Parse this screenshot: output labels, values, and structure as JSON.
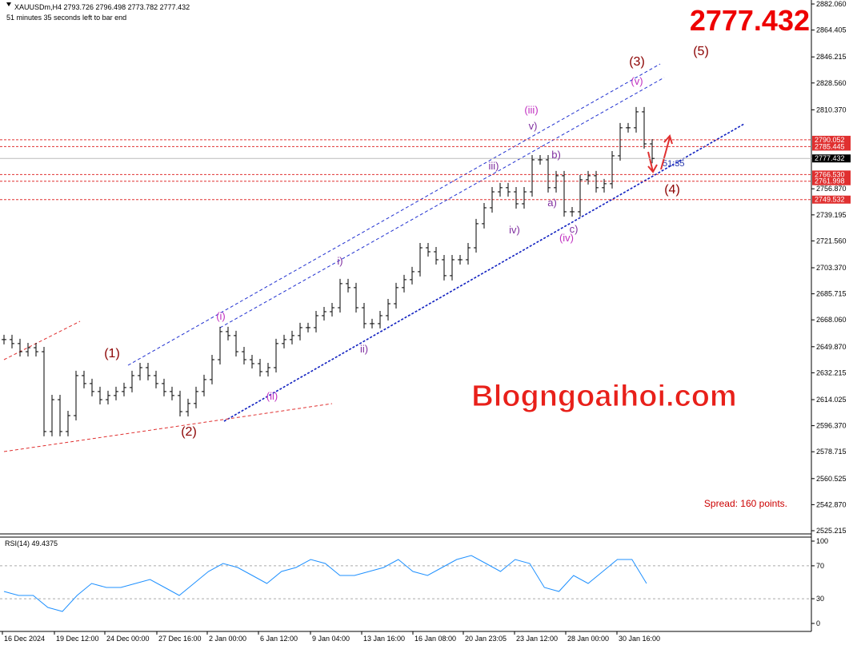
{
  "header": {
    "symbol_line": "XAUUSDm,H4  2793.726 2796.498 2773.782 2777.432",
    "timer_line": "51 minutes 35 seconds left to bar end",
    "big_price": "2777.432"
  },
  "watermark": "Blogngoaihoi.com",
  "spread": "Spread: 160 points.",
  "bar_timer": "51:35",
  "price_axis": {
    "lim": [
      2525.215,
      2882.06
    ],
    "ticks": [
      {
        "value": 2882.06,
        "label": "2882.060"
      },
      {
        "value": 2864.405,
        "label": "2864.405"
      },
      {
        "value": 2846.215,
        "label": "2846.215"
      },
      {
        "value": 2828.56,
        "label": "2828.560"
      },
      {
        "value": 2810.37,
        "label": "2810.370"
      },
      {
        "value": 2756.87,
        "label": "2756.870"
      },
      {
        "value": 2739.195,
        "label": "2739.195"
      },
      {
        "value": 2721.56,
        "label": "2721.560"
      },
      {
        "value": 2703.37,
        "label": "2703.370"
      },
      {
        "value": 2685.715,
        "label": "2685.715"
      },
      {
        "value": 2668.06,
        "label": "2668.060"
      },
      {
        "value": 2649.87,
        "label": "2649.870"
      },
      {
        "value": 2632.215,
        "label": "2632.215"
      },
      {
        "value": 2614.025,
        "label": "2614.025"
      },
      {
        "value": 2596.37,
        "label": "2596.370"
      },
      {
        "value": 2578.715,
        "label": "2578.715"
      },
      {
        "value": 2560.525,
        "label": "2560.525"
      },
      {
        "value": 2542.87,
        "label": "2542.870"
      },
      {
        "value": 2525.215,
        "label": "2525.215"
      }
    ]
  },
  "levels": [
    {
      "value": 2790.052,
      "label": "2790.052"
    },
    {
      "value": 2785.445,
      "label": "2785.445"
    },
    {
      "value": 2766.53,
      "label": "2766.530"
    },
    {
      "value": 2761.998,
      "label": "2761.998"
    },
    {
      "value": 2749.532,
      "label": "2749.532"
    }
  ],
  "current_price": {
    "value": 2777.432,
    "label": "2777.432"
  },
  "closes": [
    2654.7,
    2652.0,
    2646.5,
    2649.2,
    2646.5,
    2592.4,
    2614.0,
    2592.4,
    2603.2,
    2630.3,
    2624.9,
    2619.5,
    2614.0,
    2616.8,
    2619.5,
    2622.2,
    2630.3,
    2635.7,
    2630.3,
    2624.9,
    2619.5,
    2616.8,
    2605.9,
    2611.4,
    2619.5,
    2627.6,
    2641.1,
    2660.1,
    2657.4,
    2646.5,
    2641.1,
    2638.4,
    2633.0,
    2635.7,
    2652.0,
    2654.7,
    2657.4,
    2662.8,
    2662.8,
    2670.9,
    2673.6,
    2676.3,
    2692.6,
    2689.9,
    2676.3,
    2665.5,
    2665.5,
    2670.9,
    2679.0,
    2689.9,
    2695.3,
    2700.7,
    2716.9,
    2714.2,
    2708.8,
    2698.0,
    2708.8,
    2708.8,
    2716.9,
    2733.2,
    2744.0,
    2754.8,
    2757.6,
    2754.8,
    2746.7,
    2754.8,
    2776.5,
    2776.5,
    2757.6,
    2765.7,
    2741.3,
    2741.3,
    2763.0,
    2765.7,
    2757.6,
    2760.3,
    2779.2,
    2798.2,
    2798.2,
    2809.0,
    2787.3,
    2777.432
  ],
  "dates": [
    "16 Dec 2024",
    "19 Dec 12:00",
    "24 Dec 00:00",
    "27 Dec 16:00",
    "2 Jan 00:00",
    "6 Jan 12:00",
    "9 Jan 04:00",
    "13 Jan 16:00",
    "16 Jan 08:00",
    "20 Jan 23:05",
    "23 Jan 12:00",
    "28 Jan 00:00",
    "30 Jan 16:00"
  ],
  "waves": [
    "(1)",
    "(2)",
    "(3)",
    "(4)",
    "(5)",
    "(i)",
    "(ii)",
    "(iii)",
    "(iv)",
    "(v)",
    "i)",
    "ii)",
    "iii)",
    "iv)",
    "v)",
    "a)",
    "b)",
    "c)"
  ],
  "rsi": {
    "title": "RSI(14) 49.4375",
    "lim": [
      0,
      100
    ],
    "ticks": [
      100,
      70,
      30,
      0
    ],
    "levels": [
      70,
      30
    ],
    "values": [
      38.8,
      34.0,
      34.0,
      19.4,
      14.6,
      34.0,
      48.5,
      43.7,
      43.7,
      48.5,
      53.4,
      43.7,
      34.0,
      48.5,
      63.1,
      72.8,
      68.0,
      58.3,
      48.5,
      63.1,
      68.0,
      77.7,
      72.8,
      58.3,
      58.3,
      63.1,
      68.0,
      77.7,
      63.1,
      58.3,
      68.0,
      77.7,
      82.5,
      72.8,
      63.1,
      77.7,
      72.8,
      43.7,
      38.8,
      58.3,
      48.5,
      63.1,
      77.7,
      77.7,
      48.5
    ]
  }
}
